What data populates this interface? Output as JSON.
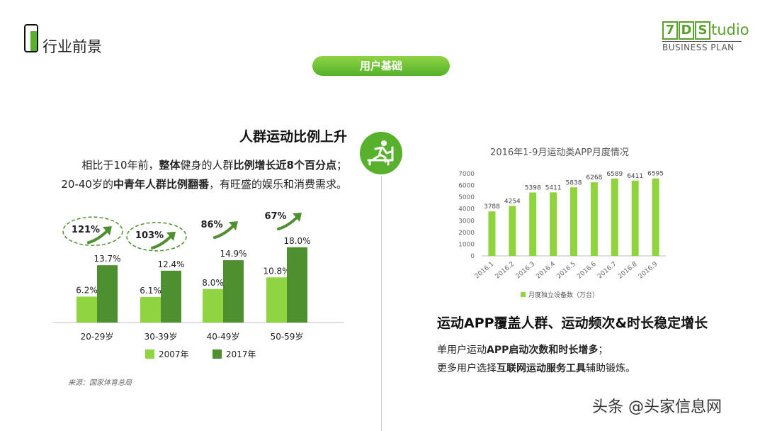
{
  "header": {
    "title": "行业前景"
  },
  "brand": {
    "logo_box1": "7",
    "logo_box2": "D",
    "logo_box3": "S",
    "logo_rest": "tudio",
    "subtitle": "BUSINESS PLAN"
  },
  "section_pill": "用户基础",
  "left": {
    "heading": "人群运动比例上升",
    "line1": [
      "相比于10年前，",
      "整体",
      "健身的人群",
      "比例增长近8个百分点",
      "；"
    ],
    "line2": [
      "20-40岁的",
      "中青年人群比例翻番",
      "，有旺盛的娱乐和消费需求。"
    ],
    "source": "来源：国家体育总局"
  },
  "right": {
    "heading": "运动APP覆盖人群、运动频次&时长稳定增长",
    "line1": [
      "单用户运动",
      "APP启动次数和时长增多",
      "；"
    ],
    "line2": [
      "更多用户选择",
      "互联网运动服务工具",
      "辅助锻炼。"
    ]
  },
  "watermark": "头条 @头家信息网",
  "colors": {
    "green_light": "#8ed53f",
    "green_dark": "#4e8f2f",
    "accent": "#58b12d",
    "right_bar": "#8fd43c"
  },
  "chart_data": [
    {
      "type": "bar",
      "categories": [
        "20-29岁",
        "30-39岁",
        "40-49岁",
        "50-59岁"
      ],
      "series": [
        {
          "name": "2007年",
          "values": [
            6.2,
            6.1,
            8.0,
            10.8
          ],
          "labels": [
            "6.2%",
            "6.1%",
            "8.0%",
            "10.8%"
          ],
          "color": "#8ed53f"
        },
        {
          "name": "2017年",
          "values": [
            13.7,
            12.4,
            14.9,
            18.0
          ],
          "labels": [
            "13.7%",
            "12.4%",
            "14.9%",
            "18.0%"
          ],
          "color": "#4e8f2f"
        }
      ],
      "growth_labels": [
        "121%",
        "103%",
        "86%",
        "67%"
      ],
      "ylim": [
        0,
        20
      ],
      "legend": "bottom"
    },
    {
      "type": "bar",
      "title": "2016年1-9月运动类APP月度情况",
      "categories": [
        "2016.1",
        "2016.2",
        "2016.3",
        "2016.4",
        "2016.5",
        "2016.6",
        "2016.7",
        "2016.8",
        "2016.9"
      ],
      "series": [
        {
          "name": "月度独立设备数（万台）",
          "values": [
            3788,
            4254,
            5398,
            5411,
            5838,
            6268,
            6589,
            6411,
            6595
          ],
          "color": "#8fd43c"
        }
      ],
      "yticks": [
        "0",
        "1000",
        "2000",
        "3000",
        "4000",
        "5000",
        "6000",
        "7000"
      ],
      "ylim": [
        0,
        7000
      ],
      "legend": "bottom"
    }
  ]
}
